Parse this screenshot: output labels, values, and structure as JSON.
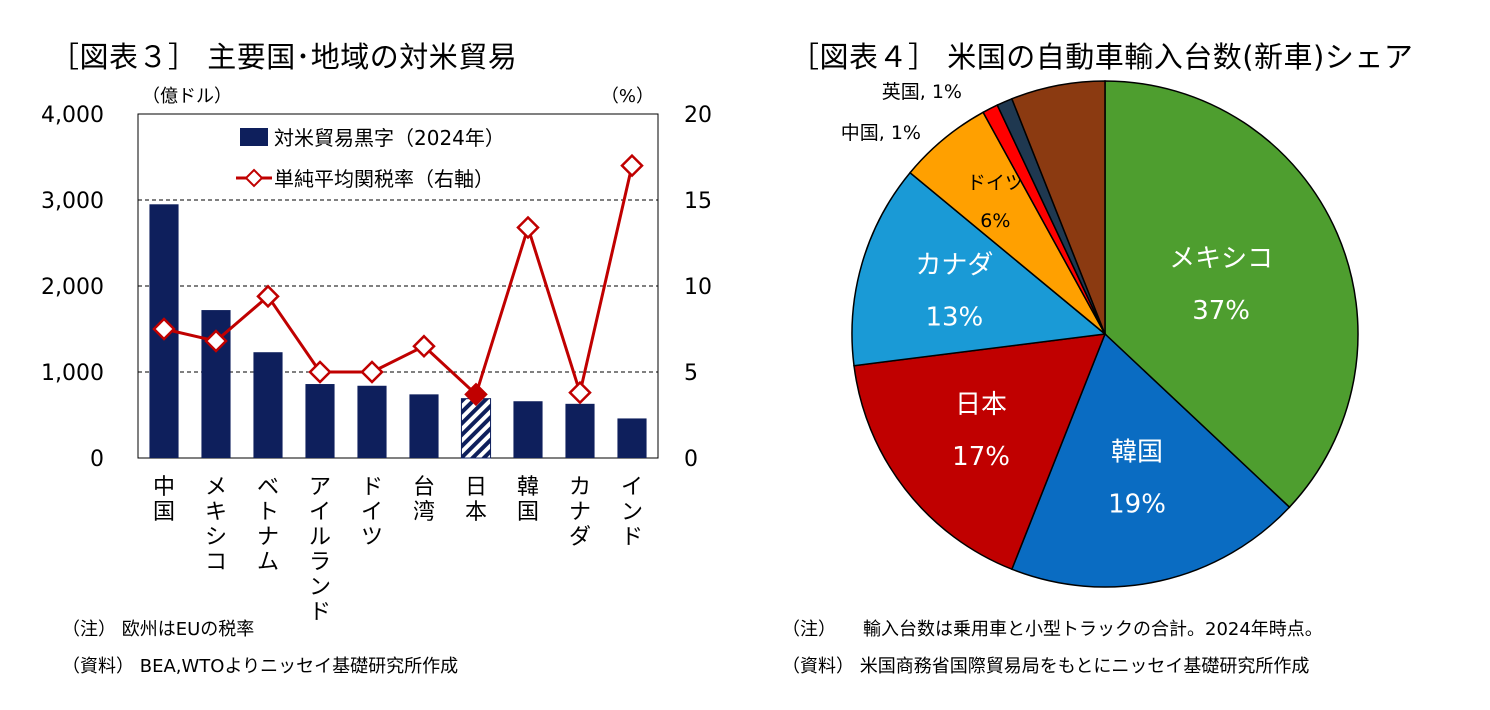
{
  "left": {
    "title": "［図表３］ 主要国･地域の対米貿易",
    "note": "（注） 欧州はEUの税率",
    "source": "（資料） BEA,WTOよりニッセイ基礎研究所作成"
  },
  "right": {
    "title": "［図表４］ 米国の自動車輸入台数(新車)シェア",
    "note": "（注）　　輸入台数は乗用車と小型トラックの合計。2024年時点。",
    "source": "（資料） 米国商務省国際貿易局をもとにニッセイ基礎研究所作成"
  },
  "chart_data": [
    {
      "type": "bar",
      "categories": [
        "中国",
        "メキシコ",
        "ベトナム",
        "アイルランド",
        "ドイツ",
        "台湾",
        "日本",
        "韓国",
        "カナダ",
        "インド"
      ],
      "series": [
        {
          "name": "対米貿易黒字（2024年）",
          "type": "bar",
          "axis": "left",
          "values": [
            2950,
            1720,
            1230,
            860,
            840,
            740,
            690,
            660,
            630,
            460
          ]
        },
        {
          "name": "単純平均関税率（右軸）",
          "type": "line",
          "axis": "right",
          "values": [
            7.5,
            6.8,
            9.4,
            5.0,
            5.0,
            6.5,
            3.7,
            13.4,
            3.8,
            17.0
          ]
        }
      ],
      "highlight_category": "日本",
      "y_left": {
        "unit": "（億ドル）",
        "ylim": [
          0,
          4000
        ],
        "ticks": [
          "0",
          "1,000",
          "2,000",
          "3,000",
          "4,000"
        ]
      },
      "y_right": {
        "unit": "（%）",
        "ylim": [
          0,
          20
        ],
        "ticks": [
          "0",
          "5",
          "10",
          "15",
          "20"
        ]
      },
      "grid": "dashed horizontal",
      "legend": "top-right",
      "colors": {
        "bar": "#0e1f5c",
        "line": "#c00000",
        "hatch": "#0e1f5c"
      }
    },
    {
      "type": "pie",
      "slices": [
        {
          "label": "メキシコ",
          "value_label": "37%",
          "value": 37,
          "color": "#4e9e2f"
        },
        {
          "label": "韓国",
          "value_label": "19%",
          "value": 19,
          "color": "#0a6cc2"
        },
        {
          "label": "日本",
          "value_label": "17%",
          "value": 17,
          "color": "#c00000"
        },
        {
          "label": "カナダ",
          "value_label": "13%",
          "value": 13,
          "color": "#1a9ad6"
        },
        {
          "label": "ドイツ",
          "value_label": "6%",
          "value": 6,
          "color": "#ffa000"
        },
        {
          "label": "中国, 1%",
          "value_label": "",
          "value": 1,
          "color": "#ff0000"
        },
        {
          "label": "英国, 1%",
          "value_label": "",
          "value": 1,
          "color": "#1f3850"
        },
        {
          "label": "",
          "value_label": "",
          "value": 6,
          "color": "#8b3a11"
        }
      ]
    }
  ]
}
